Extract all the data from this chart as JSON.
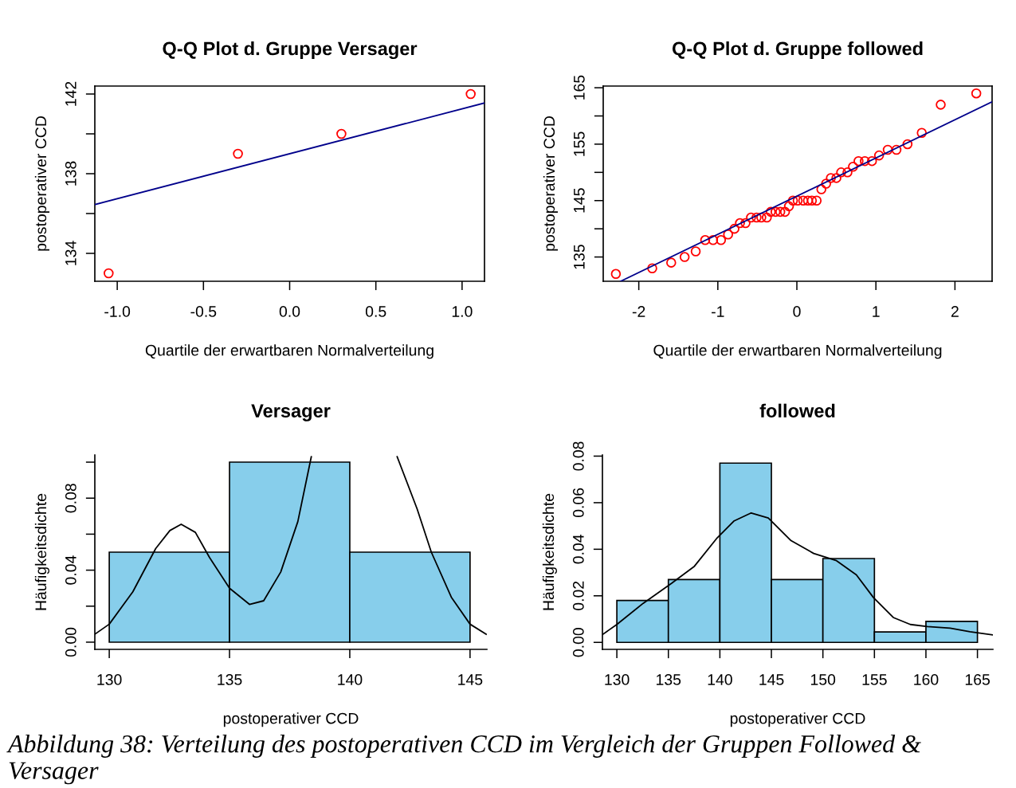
{
  "chart_data": [
    {
      "type": "scatter",
      "title": "Q-Q Plot d. Gruppe Versager",
      "xlabel": "Quartile der erwartbaren Normalverteilung",
      "ylabel": "postoperativer CCD",
      "xlim": [
        -1.13,
        1.13
      ],
      "xticks": [
        {
          "value": -1.0,
          "label": "-1.0"
        },
        {
          "value": -0.5,
          "label": "-0.5"
        },
        {
          "value": 0.0,
          "label": "0.0"
        },
        {
          "value": 0.5,
          "label": "0.5"
        },
        {
          "value": 1.0,
          "label": "1.0"
        }
      ],
      "ylim": [
        132.6,
        142.4
      ],
      "yticks": [
        134,
        {
          "value": 136,
          "label": null
        },
        138,
        {
          "value": 140,
          "label": null
        },
        142
      ],
      "grid": false,
      "legend": false,
      "series": [
        {
          "type": "scatter",
          "marker": "circle",
          "color": "#ff0000",
          "x": [
            -1.05,
            -0.3,
            0.3,
            1.05
          ],
          "values": [
            133,
            139,
            140,
            142
          ]
        },
        {
          "type": "line",
          "color": "#00008b",
          "x": [
            -1.13,
            1.13
          ],
          "values": [
            136.45,
            141.55
          ]
        }
      ]
    },
    {
      "type": "scatter",
      "title": "Q-Q Plot d. Gruppe followed",
      "xlabel": "Quartile der erwartbaren Normalverteilung",
      "ylabel": "postoperativer CCD",
      "xlim": [
        -2.45,
        2.47
      ],
      "xticks": [
        -2,
        -1,
        0,
        1,
        2
      ],
      "ylim": [
        130.7,
        165.3
      ],
      "yticks": [
        135,
        {
          "value": 140,
          "label": null
        },
        145,
        {
          "value": 150,
          "label": null
        },
        155,
        {
          "value": 160,
          "label": null
        },
        165
      ],
      "grid": false,
      "legend": false,
      "series": [
        {
          "type": "scatter",
          "marker": "circle",
          "color": "#ff0000",
          "x": [
            -2.29,
            -1.83,
            -1.59,
            -1.42,
            -1.28,
            -1.16,
            -1.06,
            -0.96,
            -0.87,
            -0.79,
            -0.72,
            -0.65,
            -0.58,
            -0.51,
            -0.45,
            -0.38,
            -0.33,
            -0.27,
            -0.21,
            -0.15,
            -0.1,
            -0.05,
            0.01,
            0.08,
            0.14,
            0.19,
            0.25,
            0.31,
            0.37,
            0.43,
            0.5,
            0.56,
            0.64,
            0.71,
            0.78,
            0.86,
            0.95,
            1.04,
            1.15,
            1.26,
            1.4,
            1.58,
            1.82,
            2.27
          ],
          "values": [
            132,
            133,
            134,
            135,
            136,
            138,
            138,
            138,
            139,
            140,
            141,
            141,
            142,
            142,
            142,
            142,
            143,
            143,
            143,
            143,
            144,
            145,
            145,
            145,
            145,
            145,
            145,
            147,
            148,
            149,
            149,
            150,
            150,
            151,
            152,
            152,
            152,
            153,
            154,
            154,
            155,
            157,
            162,
            164
          ]
        },
        {
          "type": "line",
          "color": "#00008b",
          "x": [
            -2.23,
            2.47
          ],
          "values": [
            130.7,
            162.5
          ]
        }
      ]
    },
    {
      "type": "histogram",
      "title": "Versager",
      "xlabel": "postoperativer CCD",
      "ylabel": "Häufigkeitsdichte",
      "bins": [
        130,
        135,
        140,
        145
      ],
      "values": [
        0.05,
        0.1,
        0.05
      ],
      "color": "#87ceeb",
      "xlim": [
        129.4,
        145.7
      ],
      "xticks": [
        130,
        135,
        140,
        145
      ],
      "ylim": [
        -0.004,
        0.104
      ],
      "yticks": [
        {
          "value": 0.0,
          "label": "0.00"
        },
        {
          "value": 0.02,
          "label": null
        },
        {
          "value": 0.04,
          "label": "0.04"
        },
        {
          "value": 0.06,
          "label": null
        },
        {
          "value": 0.08,
          "label": "0.08"
        },
        {
          "value": 0.1,
          "label": null
        }
      ],
      "grid": false,
      "legend": false,
      "series": [
        {
          "type": "line",
          "color": "#000000",
          "x": [
            129.4,
            130.0,
            130.98,
            131.93,
            132.52,
            132.99,
            133.58,
            134.17,
            135.0,
            135.83,
            136.42,
            137.13,
            137.84,
            138.4,
            140.2,
            141.97,
            142.8,
            143.39,
            144.22,
            145.0,
            145.67
          ],
          "values": [
            0.0044,
            0.01,
            0.028,
            0.052,
            0.062,
            0.0655,
            0.061,
            0.047,
            0.03,
            0.021,
            0.023,
            0.039,
            0.067,
            0.103,
            null,
            0.103,
            0.074,
            0.05,
            0.025,
            0.01,
            0.0044
          ]
        }
      ]
    },
    {
      "type": "histogram",
      "title": "followed",
      "xlabel": "postoperativer CCD",
      "ylabel": "Häufigkeitsdichte",
      "bins": [
        130,
        135,
        140,
        145,
        150,
        155,
        160,
        165
      ],
      "values": [
        0.018,
        0.027,
        0.077,
        0.027,
        0.036,
        0.0045,
        0.009
      ],
      "color": "#87ceeb",
      "xlim": [
        128.6,
        166.5
      ],
      "xticks": [
        130,
        135,
        140,
        145,
        150,
        155,
        160,
        165
      ],
      "ylim": [
        -0.003,
        0.0805
      ],
      "yticks": [
        {
          "value": 0.0,
          "label": "0.00"
        },
        {
          "value": 0.02,
          "label": "0.02"
        },
        {
          "value": 0.04,
          "label": "0.04"
        },
        {
          "value": 0.06,
          "label": "0.06"
        },
        {
          "value": 0.08,
          "label": "0.08"
        }
      ],
      "grid": false,
      "legend": false,
      "annotations": [
        "Abbildung 38: Verteilung des postoperativen CCD im Vergleich der Gruppen Followed & Versager"
      ],
      "series": [
        {
          "type": "line",
          "color": "#000000",
          "x": [
            128.62,
            130.0,
            132.56,
            135.32,
            137.53,
            139.74,
            141.39,
            143.04,
            144.7,
            146.91,
            149.11,
            151.32,
            153.25,
            154.9,
            156.83,
            158.49,
            160.14,
            162.35,
            164.28,
            166.5
          ],
          "values": [
            0.0034,
            0.0077,
            0.0168,
            0.0254,
            0.0327,
            0.0449,
            0.0522,
            0.0556,
            0.0534,
            0.0437,
            0.0382,
            0.0351,
            0.029,
            0.0193,
            0.0107,
            0.0077,
            0.0068,
            0.0061,
            0.0046,
            0.0032
          ]
        }
      ]
    }
  ]
}
